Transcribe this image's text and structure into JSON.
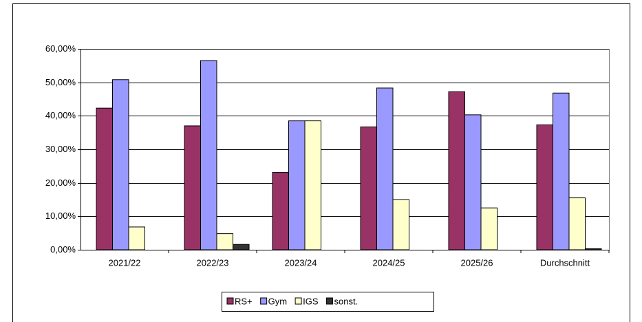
{
  "chart_data": {
    "type": "bar",
    "categories": [
      "2021/22",
      "2022/23",
      "2023/24",
      "2024/25",
      "2025/26",
      "Durchschnitt"
    ],
    "series": [
      {
        "name": "RS+",
        "color": "#993366",
        "values": [
          42.3,
          37.0,
          23.1,
          36.7,
          47.2,
          37.3
        ]
      },
      {
        "name": "Gym",
        "color": "#9999ff",
        "values": [
          50.8,
          56.5,
          38.5,
          48.3,
          40.3,
          46.8
        ]
      },
      {
        "name": "IGS",
        "color": "#ffffcc",
        "values": [
          6.8,
          4.8,
          38.5,
          15.0,
          12.5,
          15.5
        ]
      },
      {
        "name": "sonst.",
        "color": "#333333",
        "values": [
          0,
          1.6,
          0,
          0,
          0,
          0.3
        ]
      }
    ],
    "ylim": [
      0,
      60
    ],
    "yticks": [
      {
        "value": 0,
        "label": "0,00%"
      },
      {
        "value": 10,
        "label": "10,00%"
      },
      {
        "value": 20,
        "label": "20,00%"
      },
      {
        "value": 30,
        "label": "30,00%"
      },
      {
        "value": 40,
        "label": "40,00%"
      },
      {
        "value": 50,
        "label": "50,00%"
      },
      {
        "value": 60,
        "label": "60,00%"
      }
    ],
    "grid": true,
    "legend": "bottom"
  }
}
